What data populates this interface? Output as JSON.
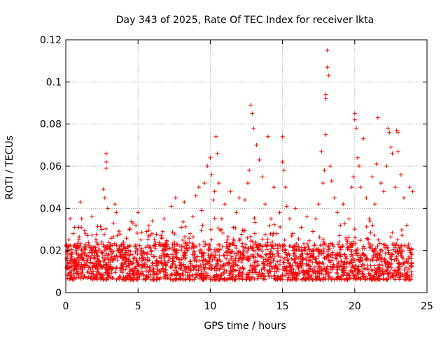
{
  "chart_data": {
    "type": "scatter",
    "title": "Day 343 of 2025, Rate Of TEC Index for receiver lkta",
    "xlabel": "GPS time / hours",
    "ylabel": "ROTI / TECUs",
    "xlim": [
      0,
      25
    ],
    "ylim": [
      0,
      0.12
    ],
    "xticks": [
      0,
      5,
      10,
      15,
      20,
      25
    ],
    "xtick_labels": [
      "0",
      "5",
      "10",
      "15",
      "20",
      "25"
    ],
    "yticks": [
      0,
      0.02,
      0.04,
      0.06,
      0.08,
      0.1,
      0.12
    ],
    "ytick_labels": [
      "0",
      "0.02",
      "0.04",
      "0.06",
      "0.08",
      "0.1",
      "0.12"
    ],
    "grid": true,
    "marker": "+",
    "color": "#ff0000",
    "series": [
      {
        "name": "ROTI",
        "x": [
          0.1,
          0.2,
          0.3,
          0.4,
          0.5,
          0.6,
          0.7,
          0.8,
          0.9,
          1.0,
          1.0,
          1.1,
          1.2,
          1.3,
          1.5,
          1.7,
          1.8,
          2.0,
          2.1,
          2.3,
          2.5,
          2.6,
          2.7,
          2.8,
          2.8,
          2.8,
          2.9,
          3.0,
          3.2,
          3.3,
          3.4,
          3.5,
          3.6,
          3.8,
          4.0,
          4.2,
          4.4,
          4.6,
          4.8,
          5.0,
          5.0,
          5.2,
          5.4,
          5.6,
          5.8,
          6.0,
          6.2,
          6.4,
          6.6,
          6.8,
          7.0,
          7.3,
          7.5,
          7.6,
          7.8,
          8.0,
          8.2,
          8.4,
          8.6,
          8.8,
          9.0,
          9.2,
          9.4,
          9.6,
          9.8,
          10.0,
          10.1,
          10.2,
          10.3,
          10.4,
          10.5,
          10.6,
          10.8,
          11.0,
          11.2,
          11.4,
          11.6,
          11.8,
          12.0,
          12.2,
          12.4,
          12.6,
          12.7,
          12.8,
          12.9,
          13.0,
          13.2,
          13.4,
          13.6,
          13.8,
          14.0,
          14.2,
          14.4,
          14.6,
          14.8,
          15.0,
          15.0,
          15.1,
          15.2,
          15.3,
          15.5,
          15.7,
          15.9,
          16.1,
          16.3,
          16.5,
          16.7,
          16.9,
          17.1,
          17.3,
          17.5,
          17.7,
          17.8,
          17.9,
          18.0,
          18.0,
          18.0,
          18.1,
          18.1,
          18.2,
          18.3,
          18.4,
          18.6,
          18.8,
          19.0,
          19.2,
          19.4,
          19.6,
          19.8,
          19.9,
          20.0,
          20.0,
          20.1,
          20.2,
          20.3,
          20.4,
          20.6,
          20.8,
          21.0,
          21.2,
          21.4,
          21.5,
          21.6,
          21.8,
          22.0,
          22.2,
          22.3,
          22.4,
          22.5,
          22.6,
          22.8,
          22.9,
          23.0,
          23.0,
          23.2,
          23.4,
          23.6,
          23.8,
          24.0
        ],
        "y": [
          0.012,
          0.025,
          0.035,
          0.018,
          0.028,
          0.011,
          0.015,
          0.022,
          0.031,
          0.043,
          0.017,
          0.035,
          0.013,
          0.021,
          0.027,
          0.014,
          0.036,
          0.019,
          0.024,
          0.013,
          0.03,
          0.049,
          0.045,
          0.066,
          0.062,
          0.059,
          0.04,
          0.022,
          0.015,
          0.033,
          0.042,
          0.038,
          0.02,
          0.012,
          0.024,
          0.016,
          0.03,
          0.018,
          0.022,
          0.038,
          0.014,
          0.025,
          0.019,
          0.029,
          0.012,
          0.034,
          0.021,
          0.014,
          0.027,
          0.035,
          0.018,
          0.041,
          0.024,
          0.045,
          0.016,
          0.031,
          0.043,
          0.02,
          0.028,
          0.036,
          0.046,
          0.05,
          0.039,
          0.052,
          0.06,
          0.064,
          0.056,
          0.044,
          0.048,
          0.074,
          0.066,
          0.052,
          0.035,
          0.042,
          0.025,
          0.048,
          0.031,
          0.038,
          0.045,
          0.022,
          0.044,
          0.052,
          0.058,
          0.089,
          0.085,
          0.078,
          0.07,
          0.063,
          0.055,
          0.042,
          0.074,
          0.035,
          0.05,
          0.028,
          0.038,
          0.074,
          0.062,
          0.058,
          0.05,
          0.041,
          0.035,
          0.028,
          0.04,
          0.022,
          0.031,
          0.02,
          0.036,
          0.015,
          0.029,
          0.035,
          0.042,
          0.067,
          0.052,
          0.058,
          0.075,
          0.094,
          0.092,
          0.115,
          0.107,
          0.103,
          0.06,
          0.053,
          0.045,
          0.038,
          0.032,
          0.042,
          0.025,
          0.035,
          0.05,
          0.055,
          0.085,
          0.082,
          0.078,
          0.064,
          0.06,
          0.05,
          0.073,
          0.045,
          0.035,
          0.055,
          0.042,
          0.061,
          0.083,
          0.052,
          0.048,
          0.06,
          0.078,
          0.076,
          0.069,
          0.066,
          0.05,
          0.077,
          0.076,
          0.067,
          0.056,
          0.045,
          0.032,
          0.05,
          0.048
        ]
      }
    ],
    "baseline_band": {
      "min": 0.006,
      "max": 0.02,
      "description": "dense cluster of + markers across 0 to 24 h"
    }
  }
}
